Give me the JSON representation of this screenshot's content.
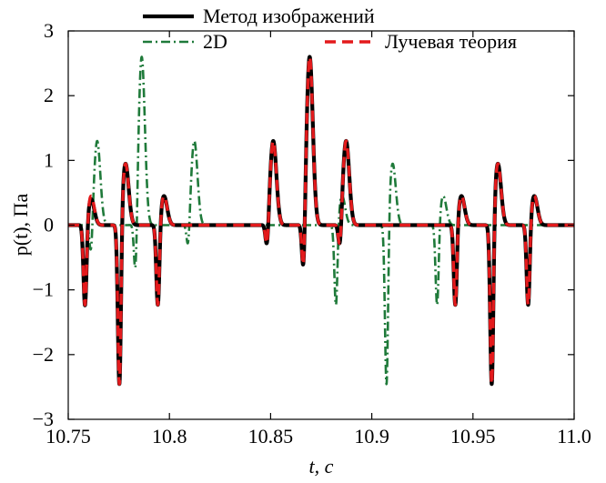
{
  "chart_data": {
    "type": "line",
    "xlabel": "t, с",
    "ylabel": "p(t), Па",
    "xlim": [
      10.75,
      11.0
    ],
    "ylim": [
      -3,
      3
    ],
    "xticks": [
      10.75,
      10.8,
      10.85,
      10.9,
      10.95,
      11.0
    ],
    "xtick_labels": [
      "10.75",
      "10.8",
      "10.85",
      "10.9",
      "10.95",
      "11.0"
    ],
    "yticks": [
      -3,
      -2,
      -1,
      0,
      1,
      2,
      3
    ],
    "ytick_labels": [
      "−3",
      "−2",
      "−1",
      "0",
      "1",
      "2",
      "3"
    ],
    "grid": false,
    "legend_position": "top",
    "series": [
      {
        "name": "Метод изображений",
        "color": "#000000",
        "style": "solid",
        "pulses": [
          {
            "t": 10.759,
            "neg": -1.3,
            "pos": 0.4
          },
          {
            "t": 10.776,
            "neg": -2.6,
            "pos": 0.95
          },
          {
            "t": 10.795,
            "neg": -1.3,
            "pos": 0.45
          },
          {
            "t": 10.849,
            "neg": -0.45,
            "pos": 1.3
          },
          {
            "t": 10.867,
            "neg": -0.95,
            "pos": 2.6
          },
          {
            "t": 10.885,
            "neg": -0.45,
            "pos": 1.3
          },
          {
            "t": 10.942,
            "neg": -1.3,
            "pos": 0.45
          },
          {
            "t": 10.96,
            "neg": -2.6,
            "pos": 0.95
          },
          {
            "t": 10.978,
            "neg": -1.3,
            "pos": 0.45
          }
        ]
      },
      {
        "name": "2D",
        "color": "#1f7a3a",
        "style": "dashdot",
        "pulses": [
          {
            "t": 10.762,
            "neg": -0.55,
            "pos": 1.3
          },
          {
            "t": 10.784,
            "neg": -1.0,
            "pos": 2.6
          },
          {
            "t": 10.81,
            "neg": -0.45,
            "pos": 1.3
          },
          {
            "t": 10.883,
            "neg": -1.3,
            "pos": 0.45
          },
          {
            "t": 10.908,
            "neg": -2.6,
            "pos": 0.95
          },
          {
            "t": 10.933,
            "neg": -1.3,
            "pos": 0.45
          }
        ]
      },
      {
        "name": "Лучевая теория",
        "color": "#e31a1c",
        "style": "dashed",
        "pulses": [
          {
            "t": 10.759,
            "neg": -1.3,
            "pos": 0.45
          },
          {
            "t": 10.776,
            "neg": -2.6,
            "pos": 0.95
          },
          {
            "t": 10.795,
            "neg": -1.3,
            "pos": 0.45
          },
          {
            "t": 10.849,
            "neg": -0.45,
            "pos": 1.3
          },
          {
            "t": 10.867,
            "neg": -0.95,
            "pos": 2.6
          },
          {
            "t": 10.885,
            "neg": -0.45,
            "pos": 1.3
          },
          {
            "t": 10.942,
            "neg": -1.3,
            "pos": 0.45
          },
          {
            "t": 10.96,
            "neg": -2.6,
            "pos": 0.95
          },
          {
            "t": 10.978,
            "neg": -1.3,
            "pos": 0.45
          }
        ]
      }
    ]
  }
}
